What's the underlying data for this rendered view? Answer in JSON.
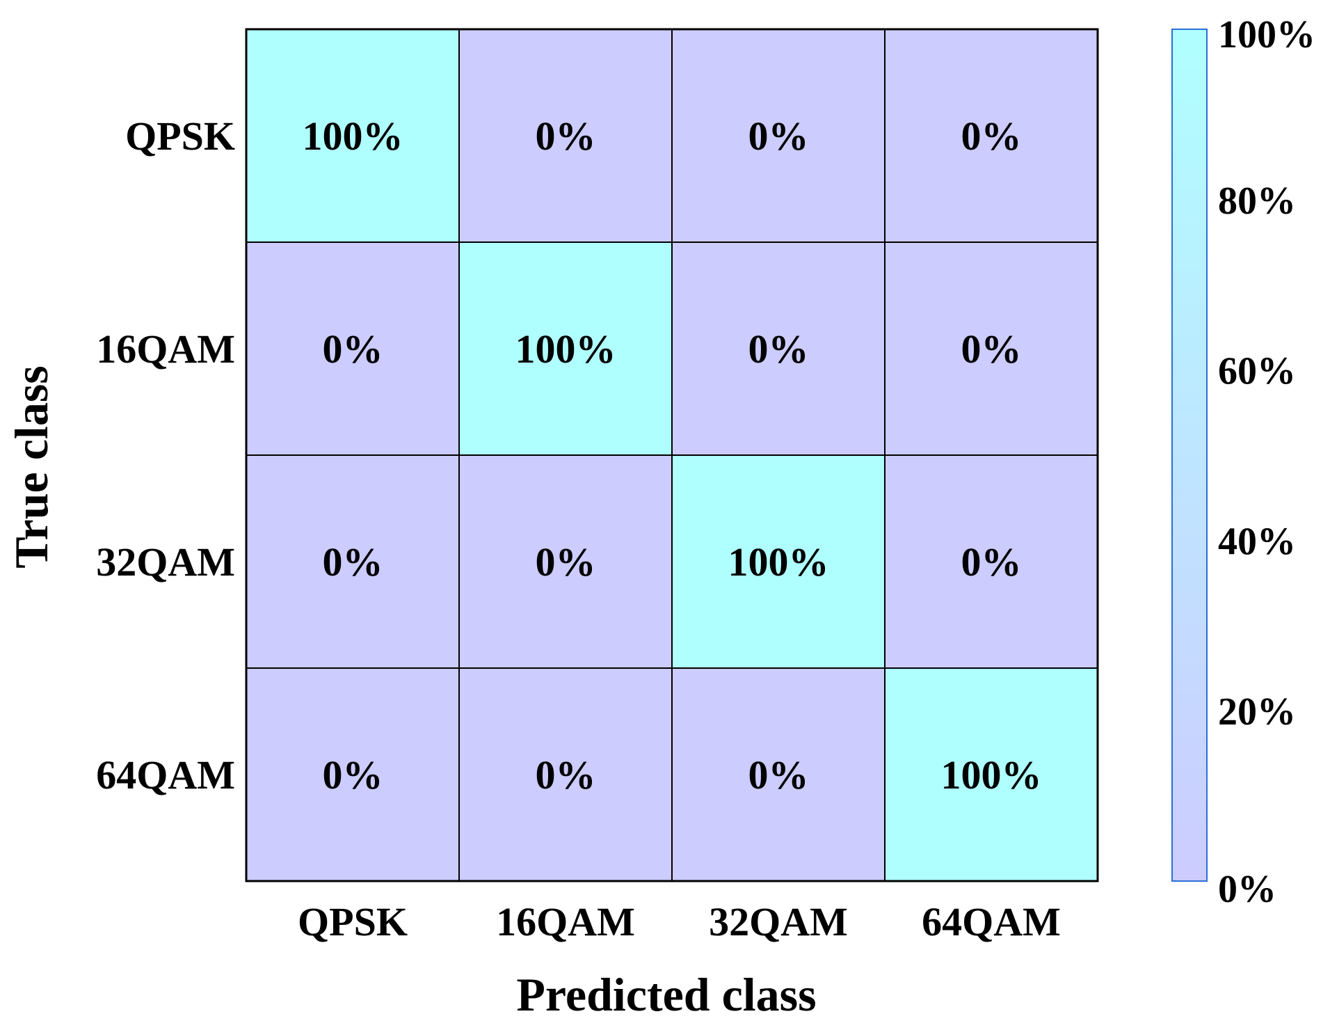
{
  "chart_data": {
    "type": "heatmap",
    "title": "",
    "xlabel": "Predicted class",
    "ylabel": "True class",
    "x_categories": [
      "QPSK",
      "16QAM",
      "32QAM",
      "64QAM"
    ],
    "y_categories": [
      "QPSK",
      "16QAM",
      "32QAM",
      "64QAM"
    ],
    "values": [
      [
        100,
        0,
        0,
        0
      ],
      [
        0,
        100,
        0,
        0
      ],
      [
        0,
        0,
        100,
        0
      ],
      [
        0,
        0,
        0,
        100
      ]
    ],
    "labels": [
      [
        "100%",
        "0%",
        "0%",
        "0%"
      ],
      [
        "0%",
        "100%",
        "0%",
        "0%"
      ],
      [
        "0%",
        "0%",
        "100%",
        "0%"
      ],
      [
        "0%",
        "0%",
        "0%",
        "100%"
      ]
    ],
    "value_range": [
      0,
      100
    ],
    "colorbar": {
      "ticks": [
        0,
        20,
        40,
        60,
        80,
        100
      ],
      "tick_labels": [
        "0%",
        "20%",
        "40%",
        "60%",
        "80%",
        "100%"
      ],
      "color_low": "#ccccff",
      "color_high": "#b0ffff"
    },
    "grid": true
  }
}
